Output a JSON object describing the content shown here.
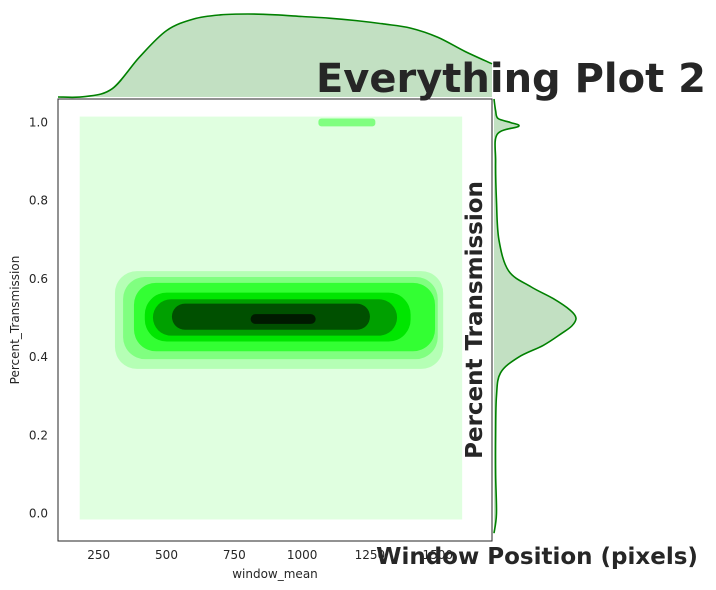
{
  "chart_data": {
    "type": "heatmap",
    "subtype": "joint kde plot with marginal density curves",
    "title": "Everything Plot 2",
    "xlabel": "window_mean",
    "ylabel": "Percent_Transmission",
    "xlabel_overlay": "Window Position (pixels)",
    "ylabel_overlay": "Percent Transmission",
    "xlim": [
      100,
      1700
    ],
    "ylim": [
      -0.07,
      1.06
    ],
    "x_ticks": [
      "250",
      "500",
      "750",
      "1000",
      "1250",
      "1500"
    ],
    "y_ticks": [
      "0.0",
      "0.2",
      "0.4",
      "0.6",
      "0.8",
      "1.0"
    ],
    "x_tick_values": [
      250,
      500,
      750,
      1000,
      1250,
      1500
    ],
    "y_tick_values": [
      0,
      0.2,
      0.4,
      0.6,
      0.8,
      1.0
    ],
    "grid": false,
    "kde_support": {
      "x": [
        180,
        1590
      ],
      "y": [
        -0.015,
        1.015
      ]
    },
    "kde_levels": [
      {
        "fill": "#e0ffe0",
        "x": [
          180,
          1590
        ],
        "y": [
          -0.015,
          1.015
        ]
      },
      {
        "fill": "#b5ffb5",
        "x": [
          310,
          1520
        ],
        "y": [
          0.37,
          0.62
        ]
      },
      {
        "fill": "#80ff80",
        "x": [
          340,
          1500
        ],
        "y": [
          0.395,
          0.605
        ]
      },
      {
        "fill": "#33ff33",
        "x": [
          380,
          1490
        ],
        "y": [
          0.415,
          0.59
        ]
      },
      {
        "fill": "#00e600",
        "x": [
          420,
          1400
        ],
        "y": [
          0.44,
          0.565
        ]
      },
      {
        "fill": "#00a000",
        "x": [
          450,
          1350
        ],
        "y": [
          0.455,
          0.548
        ]
      },
      {
        "fill": "#005000",
        "x": [
          520,
          1250
        ],
        "y": [
          0.47,
          0.537
        ]
      },
      {
        "fill": "#001a00",
        "x": [
          810,
          1050
        ],
        "y": [
          0.485,
          0.51
        ]
      }
    ],
    "top_kde_band": {
      "fill": "#80ff80",
      "x": [
        1060,
        1270
      ],
      "y": [
        0.99,
        1.01
      ]
    },
    "marginal_x": {
      "x": [
        100,
        200,
        300,
        400,
        500,
        600,
        700,
        800,
        900,
        1000,
        1100,
        1200,
        1300,
        1400,
        1500,
        1600,
        1700
      ],
      "density": [
        0.0,
        0.005,
        0.1,
        0.48,
        0.8,
        0.94,
        0.99,
        1.0,
        0.99,
        0.97,
        0.95,
        0.92,
        0.88,
        0.83,
        0.72,
        0.55,
        0.4
      ]
    },
    "marginal_y": {
      "y": [
        -0.05,
        0.0,
        0.1,
        0.2,
        0.3,
        0.36,
        0.4,
        0.43,
        0.46,
        0.48,
        0.5,
        0.52,
        0.55,
        0.58,
        0.62,
        0.7,
        0.8,
        0.9,
        0.97,
        0.99,
        1.0,
        1.01,
        1.03,
        1.06
      ],
      "density": [
        0.0,
        0.03,
        0.02,
        0.02,
        0.03,
        0.08,
        0.3,
        0.6,
        0.82,
        0.95,
        1.0,
        0.93,
        0.72,
        0.45,
        0.18,
        0.06,
        0.03,
        0.02,
        0.04,
        0.3,
        0.2,
        0.05,
        0.02,
        0.0
      ]
    },
    "colors": {
      "curve": "#008000",
      "curve_fill": "#c2e0c2"
    }
  }
}
